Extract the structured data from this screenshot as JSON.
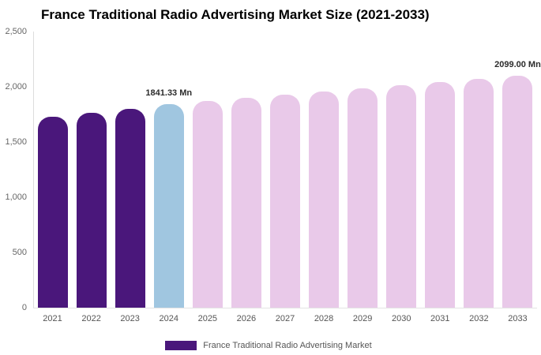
{
  "title": "France Traditional Radio Advertising Market Size (2021-2033)",
  "legend": {
    "label": "France Traditional Radio Advertising Market",
    "swatch_color": "#4A177B"
  },
  "y_axis": {
    "ticks": [
      "0",
      "500",
      "1,000",
      "1,500",
      "2,000",
      "2,500"
    ]
  },
  "chart_data": {
    "type": "bar",
    "title": "France Traditional Radio Advertising Market Size (2021-2033)",
    "categories": [
      "2021",
      "2022",
      "2023",
      "2024",
      "2025",
      "2026",
      "2027",
      "2028",
      "2029",
      "2030",
      "2031",
      "2032",
      "2033"
    ],
    "values": [
      1730,
      1765,
      1797,
      1841.33,
      1870,
      1899,
      1927,
      1956,
      1985,
      2013,
      2042,
      2070,
      2099
    ],
    "unit": "Mn",
    "xlabel": "",
    "ylabel": "",
    "ylim": [
      0,
      2500
    ],
    "grid": false,
    "legend_position": "bottom",
    "palette": {
      "historical": "#4A177B",
      "current": "#A0C6E0",
      "forecast": "#E9C9E9"
    },
    "color_keys": [
      "historical",
      "historical",
      "historical",
      "current",
      "forecast",
      "forecast",
      "forecast",
      "forecast",
      "forecast",
      "forecast",
      "forecast",
      "forecast",
      "forecast"
    ],
    "annotations": [
      {
        "category": "2024",
        "text": "1841.33 Mn"
      },
      {
        "category": "2033",
        "text": "2099.00 Mn"
      }
    ]
  }
}
